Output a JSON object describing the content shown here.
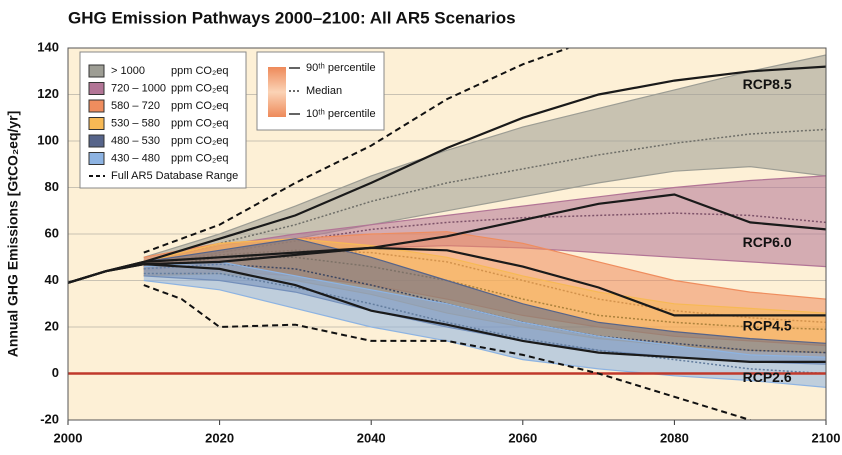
{
  "chart_data": {
    "type": "line",
    "title": "GHG Emission Pathways 2000–2100: All AR5 Scenarios",
    "y_label": "Annual GHG Emissions [GtCO₂eq/yr]",
    "xlim": [
      2000,
      2100
    ],
    "xticks": [
      2000,
      2020,
      2040,
      2060,
      2080,
      2100
    ],
    "ylim": [
      -20,
      140
    ],
    "yticks": [
      -20,
      0,
      20,
      40,
      60,
      80,
      100,
      120,
      140
    ],
    "grid": true,
    "unit": "ppm CO₂eq",
    "percentile_legend": [
      "90ᵗʰ percentile",
      "Median",
      "10ᵗʰ percentile"
    ],
    "range_x": [
      2010,
      2020,
      2030,
      2040,
      2050,
      2060,
      2070,
      2080,
      2090,
      2100
    ],
    "ranges": [
      {
        "name": "> 1000",
        "color": "#9d9d94",
        "upper": [
          50,
          60,
          72,
          85,
          96,
          106,
          114,
          122,
          130,
          137
        ],
        "median": [
          47,
          56,
          64,
          74,
          82,
          88,
          94,
          99,
          103,
          105
        ],
        "lower": [
          45,
          52,
          58,
          64,
          70,
          76,
          82,
          87,
          89,
          85
        ]
      },
      {
        "name": "720 – 1000",
        "color": "#b27596",
        "upper": [
          48,
          55,
          60,
          64,
          68,
          72,
          76,
          80,
          83,
          85
        ],
        "median": [
          46,
          52,
          57,
          62,
          65,
          67,
          68,
          69,
          68,
          65
        ],
        "lower": [
          44,
          48,
          52,
          54,
          55,
          54,
          52,
          50,
          48,
          46
        ]
      },
      {
        "name": "580 – 720",
        "color": "#ef8d5e",
        "upper": [
          50,
          56,
          58,
          60,
          61,
          56,
          48,
          40,
          35,
          32
        ],
        "median": [
          46,
          51,
          53,
          52,
          48,
          40,
          32,
          27,
          24,
          22
        ],
        "lower": [
          42,
          44,
          42,
          38,
          32,
          25,
          20,
          16,
          14,
          12
        ]
      },
      {
        "name": "530 – 580",
        "color": "#f7b955",
        "upper": [
          48,
          56,
          58,
          55,
          50,
          42,
          35,
          30,
          28,
          26
        ],
        "median": [
          45,
          50,
          50,
          46,
          40,
          32,
          25,
          22,
          20,
          19
        ],
        "lower": [
          42,
          43,
          40,
          34,
          26,
          20,
          15,
          12,
          10,
          9
        ]
      },
      {
        "name": "480 – 530",
        "color": "#56648a",
        "upper": [
          48,
          53,
          58,
          50,
          40,
          30,
          22,
          18,
          15,
          13
        ],
        "median": [
          45,
          47,
          45,
          38,
          30,
          22,
          16,
          13,
          10,
          9
        ],
        "lower": [
          42,
          40,
          35,
          27,
          20,
          14,
          10,
          7,
          5,
          4
        ]
      },
      {
        "name": "430 – 480",
        "color": "#8db3e2",
        "upper": [
          46,
          48,
          42,
          36,
          30,
          22,
          16,
          12,
          8,
          7
        ],
        "median": [
          43,
          43,
          37,
          30,
          22,
          15,
          10,
          6,
          2,
          0
        ],
        "lower": [
          40,
          36,
          28,
          20,
          14,
          6,
          2,
          -1,
          -3,
          -6
        ]
      }
    ],
    "series": [
      {
        "name": "RCP8.5",
        "color": "#1a1a1a",
        "x": [
          2000,
          2005,
          2010,
          2020,
          2030,
          2040,
          2050,
          2060,
          2070,
          2080,
          2090,
          2100
        ],
        "values": [
          39,
          44,
          48,
          58,
          68,
          82,
          97,
          110,
          120,
          126,
          130,
          132
        ]
      },
      {
        "name": "RCP6.0",
        "color": "#1a1a1a",
        "x": [
          2000,
          2005,
          2010,
          2020,
          2030,
          2040,
          2050,
          2060,
          2070,
          2080,
          2090,
          2100
        ],
        "values": [
          39,
          44,
          47,
          48,
          51,
          54,
          59,
          66,
          73,
          77,
          65,
          62
        ]
      },
      {
        "name": "RCP4.5",
        "color": "#1a1a1a",
        "x": [
          2000,
          2005,
          2010,
          2020,
          2030,
          2040,
          2050,
          2060,
          2070,
          2080,
          2090,
          2100
        ],
        "values": [
          39,
          44,
          48,
          50,
          52,
          54,
          53,
          46,
          37,
          25,
          25,
          25
        ]
      },
      {
        "name": "RCP2.6",
        "color": "#1a1a1a",
        "x": [
          2000,
          2005,
          2010,
          2020,
          2030,
          2040,
          2050,
          2060,
          2070,
          2080,
          2090,
          2100
        ],
        "values": [
          39,
          44,
          47,
          45,
          38,
          27,
          21,
          14,
          9,
          7,
          5,
          5
        ]
      }
    ],
    "database_range": {
      "name": "Full AR5 Database Range",
      "upper": {
        "x": [
          2010,
          2020,
          2030,
          2040,
          2050,
          2060,
          2066
        ],
        "values": [
          52,
          64,
          82,
          98,
          118,
          133,
          140
        ]
      },
      "lower": {
        "x": [
          2010,
          2015,
          2020,
          2030,
          2040,
          2050,
          2060,
          2070,
          2080,
          2090
        ],
        "values": [
          38,
          32,
          20,
          21,
          14,
          14,
          8,
          0,
          -10,
          -20
        ]
      }
    },
    "zero_line": {
      "value": 0,
      "color": "#c0392b"
    }
  }
}
